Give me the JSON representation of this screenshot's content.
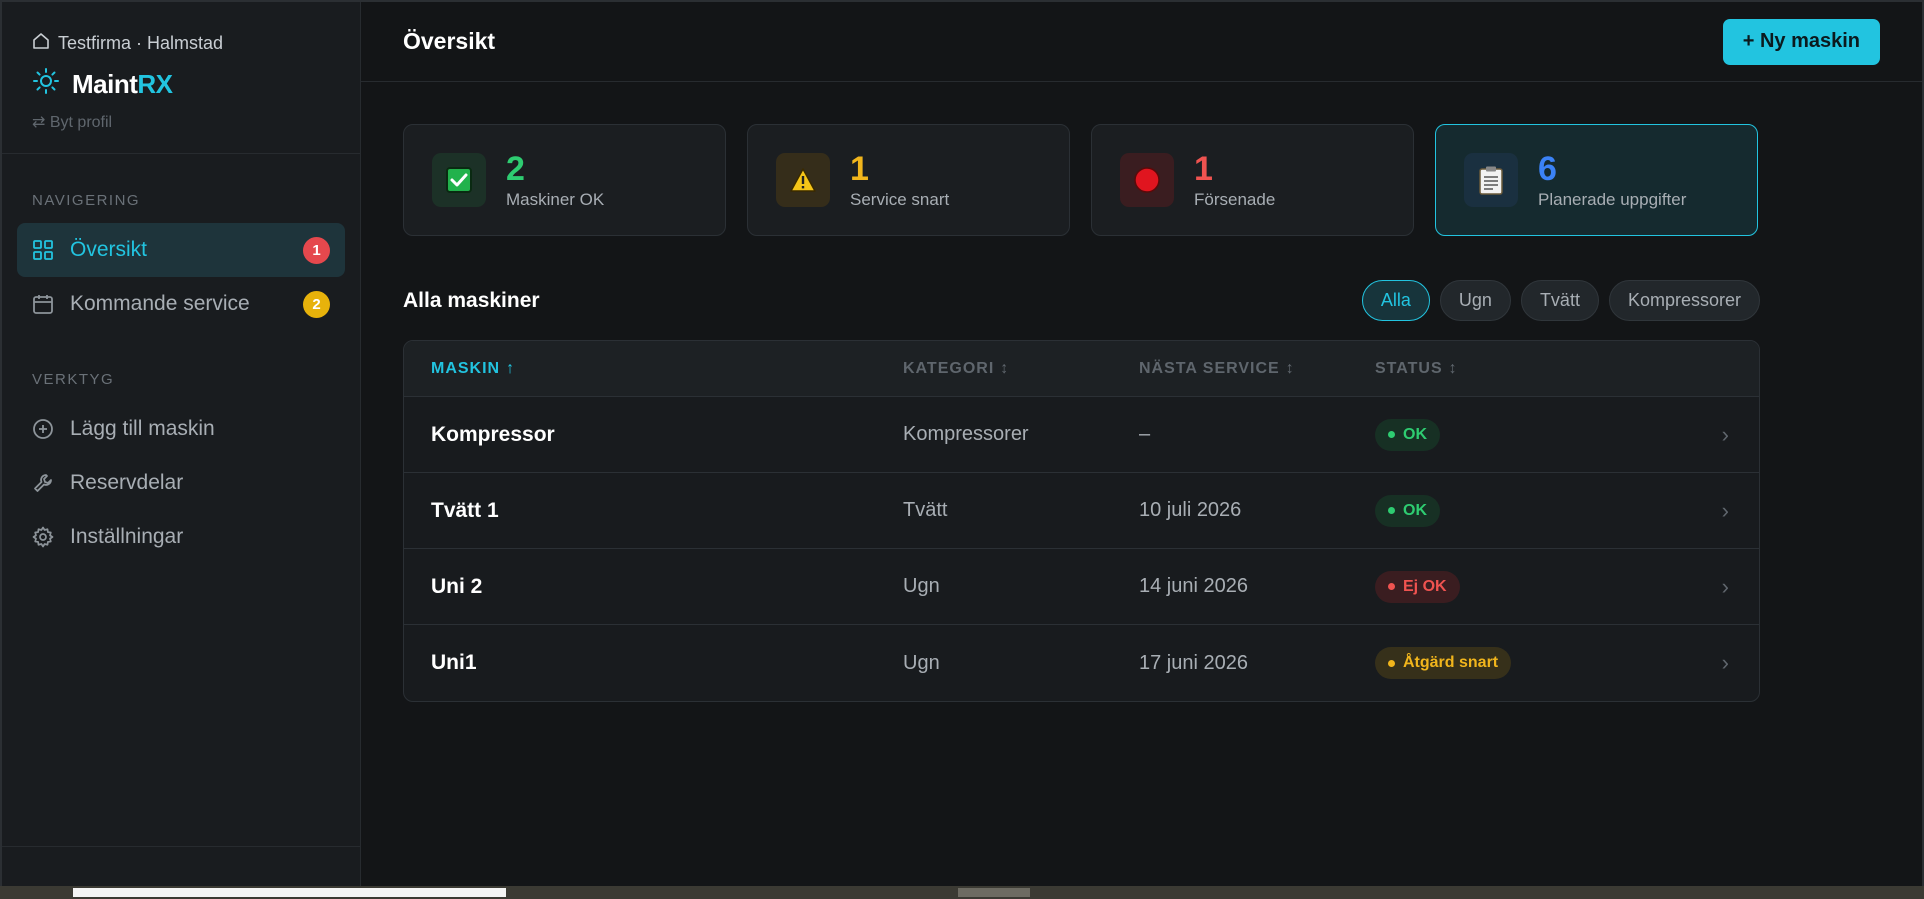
{
  "sidebar": {
    "company": "Testfirma · Halmstad",
    "brand_main": "Maint",
    "brand_accent": "RX",
    "switch_profile": "⇄ Byt profil",
    "nav_label": "NAVIGERING",
    "nav": [
      {
        "label": "Översikt",
        "icon": "grid-icon",
        "badge": "1"
      },
      {
        "label": "Kommande service",
        "icon": "calendar-icon",
        "badge": "2"
      }
    ],
    "tools_label": "VERKTYG",
    "tools": [
      {
        "label": "Lägg till maskin",
        "icon": "plus-circle-icon"
      },
      {
        "label": "Reservdelar",
        "icon": "wrench-icon"
      },
      {
        "label": "Inställningar",
        "icon": "gear-icon"
      }
    ]
  },
  "header": {
    "title": "Översikt",
    "new_button": "+ Ny maskin"
  },
  "stats": [
    {
      "value": "2",
      "label": "Maskiner OK",
      "color": "#2ecc71",
      "icon": "check-icon"
    },
    {
      "value": "1",
      "label": "Service snart",
      "color": "#f1b51c",
      "icon": "warning-icon"
    },
    {
      "value": "1",
      "label": "Försenade",
      "color": "#ef5350",
      "icon": "red-circle-icon"
    },
    {
      "value": "6",
      "label": "Planerade uppgifter",
      "color": "#3b82f6",
      "icon": "clipboard-icon"
    }
  ],
  "list": {
    "title": "Alla maskiner",
    "filters": [
      "Alla",
      "Ugn",
      "Tvätt",
      "Kompressorer"
    ],
    "active_filter": "Alla",
    "columns": [
      {
        "label": "MASKIN",
        "sort": "↑"
      },
      {
        "label": "KATEGORI",
        "sort": "↕"
      },
      {
        "label": "NÄSTA SERVICE",
        "sort": "↕"
      },
      {
        "label": "STATUS",
        "sort": "↕"
      }
    ],
    "rows": [
      {
        "name": "Kompressor",
        "category": "Kompressorer",
        "next_service": "–",
        "status": "OK",
        "status_type": "ok"
      },
      {
        "name": "Tvätt 1",
        "category": "Tvätt",
        "next_service": "10 juli 2026",
        "status": "OK",
        "status_type": "ok"
      },
      {
        "name": "Uni 2",
        "category": "Ugn",
        "next_service": "14 juni 2026",
        "status": "Ej OK",
        "status_type": "bad"
      },
      {
        "name": "Uni1",
        "category": "Ugn",
        "next_service": "17 juni 2026",
        "status": "Åtgärd snart",
        "status_type": "warn"
      }
    ]
  },
  "colors": {
    "accent": "#22c4e0",
    "ok": "#2ecc71",
    "warn": "#f1b51c",
    "bad": "#ef5350"
  }
}
